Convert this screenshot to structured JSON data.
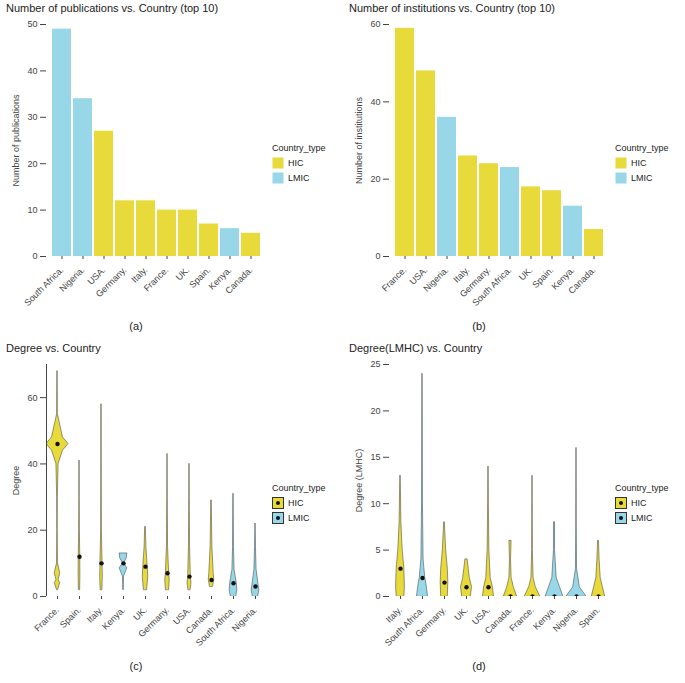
{
  "chart_data": [
    {
      "type": "bar",
      "title": "Number of publications vs. Country (top 10)",
      "caption": "(a)",
      "ylabel": "Number of publications",
      "legend": "right",
      "legend_title": "Country_type",
      "series": [
        {
          "name": "HIC",
          "color": "#E8DA3B"
        },
        {
          "name": "LMIC",
          "color": "#97D7E8"
        }
      ],
      "categories": [
        "South Africa.",
        "Nigeria.",
        "USA.",
        "Germany.",
        "Italy.",
        "France.",
        "UK.",
        "Spain.",
        "Kenya.",
        "Canada."
      ],
      "groups": [
        "LMIC",
        "LMIC",
        "HIC",
        "HIC",
        "HIC",
        "HIC",
        "HIC",
        "HIC",
        "LMIC",
        "HIC"
      ],
      "values": [
        49,
        34,
        27,
        12,
        12,
        10,
        10,
        7,
        6,
        5
      ],
      "ylim": [
        0,
        50
      ],
      "yticks": [
        0,
        10,
        20,
        30,
        40,
        50
      ],
      "grid": false
    },
    {
      "type": "bar",
      "title": "Number of institutions vs. Country (top 10)",
      "caption": "(b)",
      "ylabel": "Number of institutions",
      "legend": "right",
      "legend_title": "Country_type",
      "series": [
        {
          "name": "HIC",
          "color": "#E8DA3B"
        },
        {
          "name": "LMIC",
          "color": "#97D7E8"
        }
      ],
      "categories": [
        "France.",
        "USA.",
        "Nigeria.",
        "Italy.",
        "Germany.",
        "South Africa.",
        "UK.",
        "Spain.",
        "Kenya.",
        "Canada."
      ],
      "groups": [
        "HIC",
        "HIC",
        "LMIC",
        "HIC",
        "HIC",
        "LMIC",
        "HIC",
        "HIC",
        "LMIC",
        "HIC"
      ],
      "values": [
        59,
        48,
        36,
        26,
        24,
        23,
        18,
        17,
        13,
        7
      ],
      "ylim": [
        0,
        60
      ],
      "yticks": [
        0,
        20,
        40,
        60
      ],
      "grid": false
    },
    {
      "type": "violin",
      "title": "Degree vs. Country",
      "caption": "(c)",
      "ylabel": "Degree",
      "legend": "right",
      "legend_title": "Country_type",
      "series": [
        {
          "name": "HIC",
          "color": "#E8DA3B"
        },
        {
          "name": "LMIC",
          "color": "#97D7E8"
        }
      ],
      "categories": [
        "France.",
        "Spain.",
        "Italy.",
        "Kenya.",
        "UK.",
        "Germany.",
        "USA.",
        "Canada.",
        "South Africa.",
        "Nigeria."
      ],
      "groups": [
        "HIC",
        "HIC",
        "HIC",
        "LMIC",
        "HIC",
        "HIC",
        "HIC",
        "HIC",
        "LMIC",
        "LMIC"
      ],
      "medians": [
        46,
        12,
        10,
        10,
        9,
        7,
        6,
        5,
        4,
        3
      ],
      "profiles": [
        {
          "y": [
            2,
            4,
            5,
            7,
            10,
            20,
            30,
            40,
            44,
            46,
            48,
            55,
            68
          ],
          "width": [
            0.05,
            0.25,
            0.1,
            0.25,
            0.04,
            0.02,
            0.03,
            0.1,
            0.5,
            1.0,
            0.5,
            0.03,
            0.01
          ]
        },
        {
          "y": [
            2,
            6,
            12,
            20,
            30,
            41
          ],
          "width": [
            0.06,
            0.08,
            0.07,
            0.03,
            0.015,
            0.01
          ]
        },
        {
          "y": [
            2,
            6,
            10,
            20,
            40,
            58
          ],
          "width": [
            0.08,
            0.12,
            0.1,
            0.03,
            0.015,
            0.01
          ]
        },
        {
          "y": [
            2,
            6,
            8.5,
            10,
            11.5,
            13
          ],
          "width": [
            0.02,
            0.05,
            0.35,
            0.05,
            0.3,
            0.35
          ]
        },
        {
          "y": [
            2,
            6,
            9,
            15,
            21
          ],
          "width": [
            0.15,
            0.25,
            0.2,
            0.08,
            0.03
          ]
        },
        {
          "y": [
            2,
            5,
            7,
            15,
            30,
            43
          ],
          "width": [
            0.15,
            0.2,
            0.15,
            0.05,
            0.02,
            0.01
          ]
        },
        {
          "y": [
            2,
            4,
            6,
            15,
            30,
            40
          ],
          "width": [
            0.1,
            0.18,
            0.12,
            0.05,
            0.02,
            0.01
          ]
        },
        {
          "y": [
            3,
            5,
            7,
            15,
            29
          ],
          "width": [
            0.15,
            0.25,
            0.2,
            0.08,
            0.02
          ]
        },
        {
          "y": [
            0,
            2,
            4,
            8,
            15,
            31
          ],
          "width": [
            0.25,
            0.35,
            0.3,
            0.1,
            0.04,
            0.01
          ]
        },
        {
          "y": [
            0,
            2,
            3,
            8,
            15,
            22
          ],
          "width": [
            0.25,
            0.35,
            0.3,
            0.1,
            0.04,
            0.01
          ]
        }
      ],
      "ylim": [
        0,
        70
      ],
      "yticks": [
        0,
        20,
        40,
        60
      ],
      "grid": false
    },
    {
      "type": "violin",
      "title": "Degree(LMHC) vs. Country",
      "caption": "(d)",
      "ylabel": "Degree (LMHC)",
      "legend": "right",
      "legend_title": "Country_type",
      "series": [
        {
          "name": "HIC",
          "color": "#E8DA3B"
        },
        {
          "name": "LMIC",
          "color": "#97D7E8"
        }
      ],
      "categories": [
        "Italy.",
        "South Africa.",
        "Germany.",
        "UK.",
        "USA.",
        "Canada.",
        "France.",
        "Kenya.",
        "Nigeria.",
        "Spain."
      ],
      "groups": [
        "HIC",
        "LMIC",
        "HIC",
        "HIC",
        "HIC",
        "HIC",
        "HIC",
        "LMIC",
        "LMIC",
        "HIC"
      ],
      "medians": [
        3,
        2,
        1.5,
        1,
        1,
        0,
        0,
        0,
        0,
        0
      ],
      "profiles": [
        {
          "y": [
            0,
            1,
            3,
            5,
            8,
            13
          ],
          "width": [
            0.35,
            0.4,
            0.35,
            0.2,
            0.08,
            0.02
          ]
        },
        {
          "y": [
            0,
            1,
            2,
            4,
            10,
            24
          ],
          "width": [
            0.5,
            0.4,
            0.25,
            0.1,
            0.04,
            0.01
          ]
        },
        {
          "y": [
            0,
            1.5,
            3,
            5,
            8
          ],
          "width": [
            0.3,
            0.35,
            0.3,
            0.15,
            0.03
          ]
        },
        {
          "y": [
            0,
            1,
            2,
            3,
            4
          ],
          "width": [
            0.4,
            0.5,
            0.3,
            0.2,
            0.1
          ]
        },
        {
          "y": [
            0,
            1,
            2,
            5,
            10,
            14
          ],
          "width": [
            0.5,
            0.4,
            0.2,
            0.08,
            0.03,
            0.01
          ]
        },
        {
          "y": [
            0,
            1,
            2,
            4,
            6
          ],
          "width": [
            0.6,
            0.3,
            0.1,
            0.05,
            0.1
          ]
        },
        {
          "y": [
            0,
            1,
            2,
            5,
            13
          ],
          "width": [
            0.7,
            0.3,
            0.1,
            0.03,
            0.01
          ]
        },
        {
          "y": [
            0,
            1,
            2,
            5,
            8
          ],
          "width": [
            0.8,
            0.5,
            0.2,
            0.05,
            0.05
          ]
        },
        {
          "y": [
            0,
            1,
            3,
            8,
            16
          ],
          "width": [
            0.9,
            0.3,
            0.05,
            0.02,
            0.01
          ]
        },
        {
          "y": [
            0,
            1,
            2,
            4,
            6
          ],
          "width": [
            0.6,
            0.4,
            0.2,
            0.1,
            0.04
          ]
        }
      ],
      "ylim": [
        0,
        25
      ],
      "yticks": [
        0,
        5,
        10,
        15,
        20,
        25
      ],
      "grid": false
    }
  ]
}
